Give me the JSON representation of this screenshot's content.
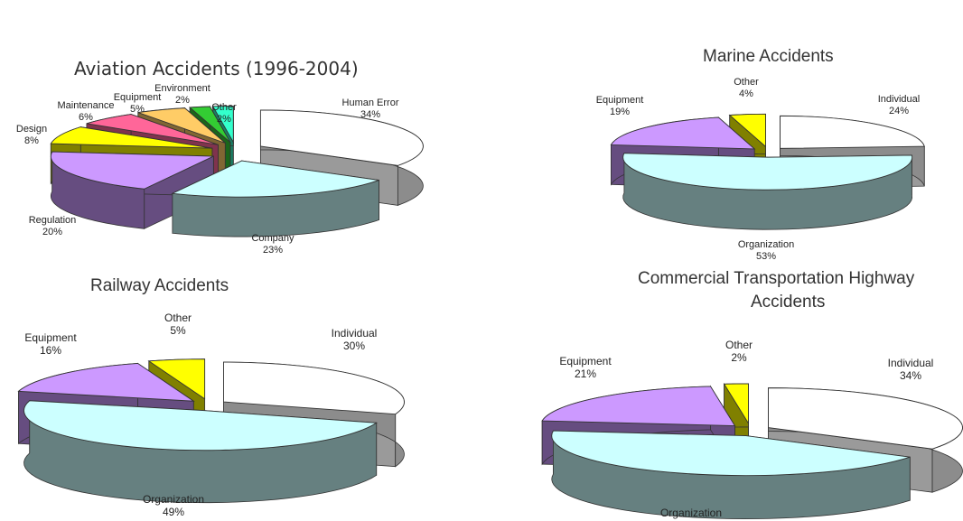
{
  "colors": {
    "human": "#ffffff",
    "company": "#ccffff",
    "regulation": "#cc99ff",
    "design": "#ffff00",
    "maintenance": "#ff6699",
    "equipment": "#ffcc66",
    "environment": "#33cc33",
    "other": "#33ffcc",
    "text": "#222222"
  },
  "chart_data": [
    {
      "type": "pie",
      "title": "Aviation Accidents (1996-2004)",
      "labels": [
        "Human Error",
        "Company",
        "Regulation",
        "Design",
        "Maintenance",
        "Equipment",
        "Environment",
        "Other"
      ],
      "values": [
        34,
        23,
        20,
        8,
        6,
        5,
        2,
        2
      ],
      "value_labels": [
        "34%",
        "23%",
        "20%",
        "8%",
        "6%",
        "5%",
        "2%",
        "2%"
      ],
      "colors": [
        "#ffffff",
        "#ccffff",
        "#cc99ff",
        "#ffff00",
        "#ff6699",
        "#ffcc66",
        "#33cc33",
        "#33ffcc"
      ],
      "style": "3d-exploded"
    },
    {
      "type": "pie",
      "title": "Marine Accidents",
      "labels": [
        "Individual",
        "Organization",
        "Equipment",
        "Other"
      ],
      "values": [
        24,
        53,
        19,
        4
      ],
      "value_labels": [
        "24%",
        "53%",
        "19%",
        "4%"
      ],
      "colors": [
        "#ffffff",
        "#ccffff",
        "#cc99ff",
        "#ffff00"
      ],
      "style": "3d-exploded"
    },
    {
      "type": "pie",
      "title": "Railway Accidents",
      "labels": [
        "Individual",
        "Organization",
        "Equipment",
        "Other"
      ],
      "values": [
        30,
        49,
        16,
        5
      ],
      "value_labels": [
        "30%",
        "49%",
        "16%",
        "5%"
      ],
      "colors": [
        "#ffffff",
        "#ccffff",
        "#cc99ff",
        "#ffff00"
      ],
      "style": "3d-exploded"
    },
    {
      "type": "pie",
      "title": "Commercial Transportation Highway Accidents",
      "title_lines": [
        "Commercial Transportation Highway",
        "Accidents"
      ],
      "labels": [
        "Individual",
        "Organization",
        "Equipment",
        "Other"
      ],
      "values": [
        34,
        43,
        21,
        2
      ],
      "value_labels": [
        "34%",
        "",
        "21%",
        "2%"
      ],
      "colors": [
        "#ffffff",
        "#ccffff",
        "#cc99ff",
        "#ffff00"
      ],
      "style": "3d-exploded"
    }
  ]
}
